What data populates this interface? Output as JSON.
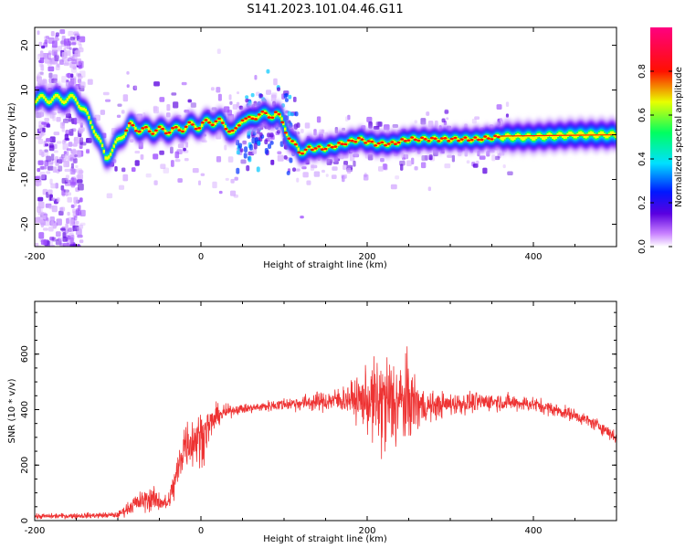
{
  "title": "S141.2023.101.04.46.G11",
  "colors": {
    "snr_line": "#ee3333",
    "axis": "#000000"
  },
  "chart_data": [
    {
      "type": "heatmap",
      "title": "",
      "xlabel": "Height of straight line (km)",
      "ylabel": "Frequency (Hz)",
      "xlim": [
        -200,
        500
      ],
      "ylim": [
        -25,
        24
      ],
      "x_ticks": [
        -200,
        0,
        200,
        400
      ],
      "y_ticks": [
        20,
        10,
        0,
        -10,
        -20
      ],
      "colorbar": {
        "label": "Normalized spectral amplitude",
        "range": [
          0,
          1
        ],
        "ticks": [
          "0.0",
          "0.2",
          "0.4",
          "0.6",
          "0.8"
        ],
        "tick_values": [
          0.0,
          0.2,
          0.4,
          0.6,
          0.8
        ],
        "colormap": "rainbow (white-purple-blue-cyan-green-yellow-red-magenta)"
      },
      "ridge": {
        "x": [
          -150,
          -130,
          -115,
          -105,
          -95,
          -85,
          -70,
          -50,
          -30,
          -15,
          0,
          10,
          20,
          30,
          40,
          50,
          60,
          70,
          80,
          90,
          100,
          110,
          120,
          130,
          150,
          170,
          190,
          210,
          230,
          250,
          270,
          290,
          310,
          330,
          360,
          400,
          450,
          500
        ],
        "y": [
          8,
          2,
          -5,
          -3,
          0,
          2,
          1,
          1,
          1,
          2,
          2,
          3,
          3,
          2,
          0,
          4,
          3,
          5,
          4,
          5,
          2,
          -2,
          -4,
          -3,
          -3,
          -2,
          -1,
          -2,
          -2,
          -1,
          -1,
          -1,
          -1,
          -1,
          -0.5,
          -0.5,
          0,
          0
        ]
      }
    },
    {
      "type": "line",
      "title": "",
      "xlabel": "Height of straight line (km)",
      "ylabel": "SNR (10 * v/v)",
      "xlim": [
        -200,
        500
      ],
      "ylim": [
        0,
        790
      ],
      "x_ticks": [
        -200,
        0,
        200,
        400
      ],
      "y_ticks": [
        0,
        200,
        400,
        600
      ],
      "series": [
        {
          "envelope_x": [
            -200,
            -100,
            -80,
            -60,
            -40,
            -30,
            -20,
            0,
            20,
            40,
            60,
            100,
            150,
            180,
            200,
            220,
            250,
            270,
            300,
            350,
            400,
            450,
            480,
            500
          ],
          "envelope_mean": [
            15,
            20,
            60,
            80,
            60,
            150,
            280,
            300,
            380,
            400,
            405,
            420,
            430,
            440,
            430,
            420,
            430,
            410,
            420,
            430,
            420,
            380,
            340,
            300
          ],
          "envelope_spread": [
            10,
            12,
            35,
            50,
            30,
            80,
            100,
            110,
            40,
            20,
            18,
            25,
            40,
            60,
            120,
            220,
            160,
            60,
            45,
            35,
            30,
            25,
            25,
            30
          ]
        }
      ]
    }
  ]
}
